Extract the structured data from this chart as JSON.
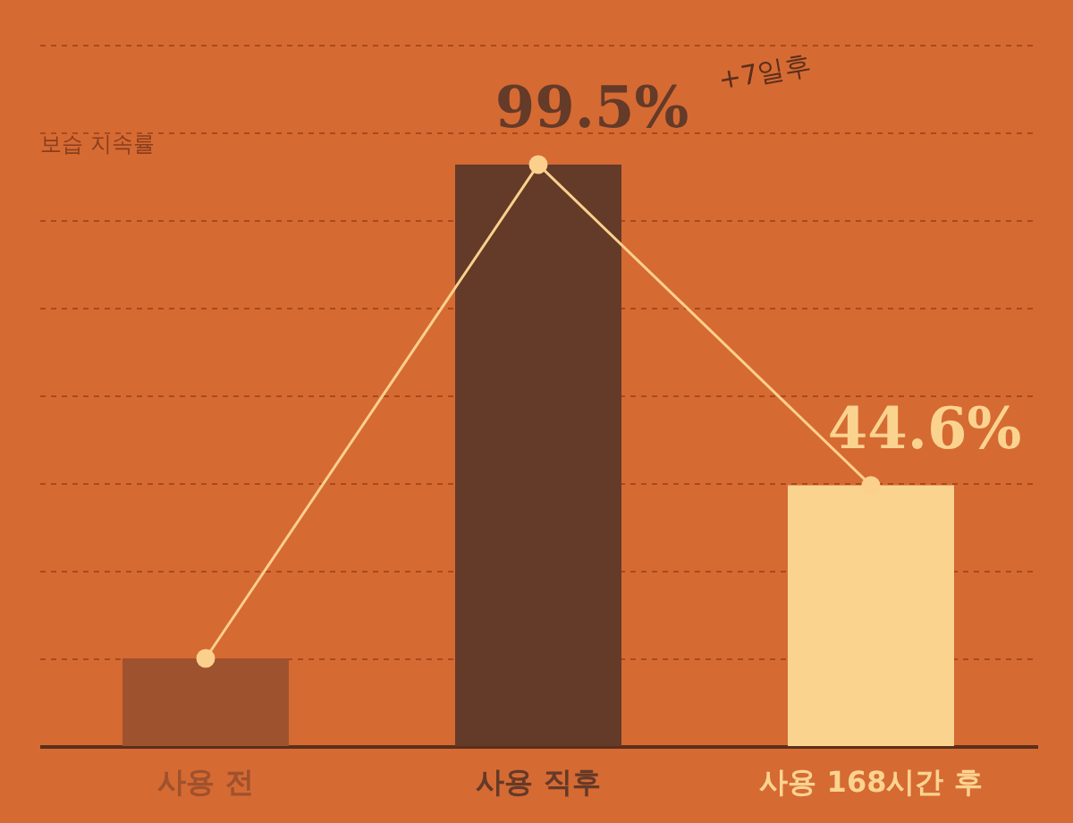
{
  "chart_data": {
    "type": "bar",
    "ylabel": "보습 지속률",
    "categories": [
      "사용 전",
      "사용 직후",
      "사용 168시간 후"
    ],
    "ylim": [
      0,
      120
    ],
    "yticks": [
      {
        "value": 15,
        "label": null
      },
      {
        "value": 30,
        "label": null
      },
      {
        "value": 45,
        "label": null
      },
      {
        "value": 60,
        "label": null
      },
      {
        "value": 75,
        "label": null
      },
      {
        "value": 90,
        "label": null
      },
      {
        "value": 105,
        "label": null
      },
      {
        "value": 120,
        "label": null
      }
    ],
    "series": [
      {
        "colors": [
          "#9e522d",
          "#643a28",
          "#fad38f"
        ],
        "values": [
          15,
          99.5,
          44.6
        ],
        "value_labels": [
          null,
          "99.5%",
          "44.6%"
        ]
      },
      {
        "type": "line",
        "color": "#fbd08c",
        "values": [
          15,
          99.5,
          44.6
        ],
        "marker": "circle"
      }
    ],
    "annotations": [
      "+7일후"
    ],
    "grid": "y"
  }
}
